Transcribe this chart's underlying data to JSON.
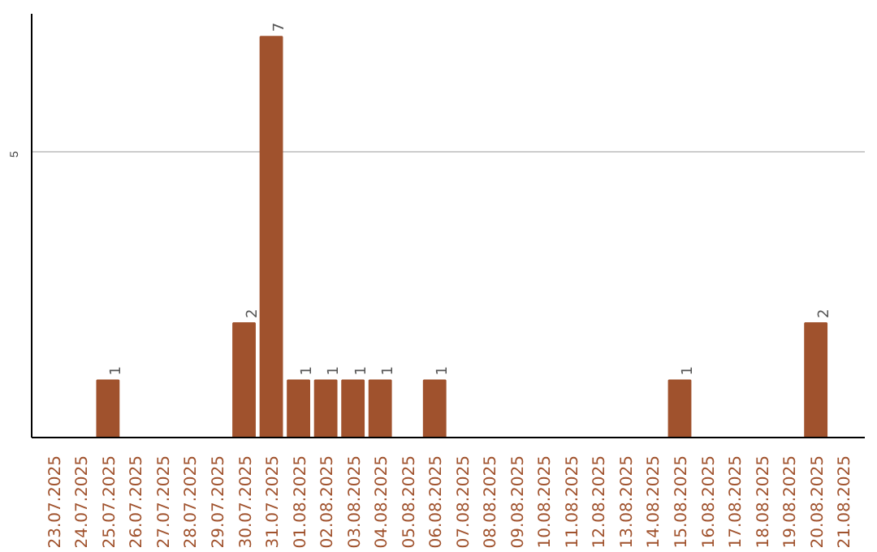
{
  "chart_data": {
    "type": "bar",
    "categories": [
      "23.07.2025",
      "24.07.2025",
      "25.07.2025",
      "26.07.2025",
      "27.07.2025",
      "28.07.2025",
      "29.07.2025",
      "30.07.2025",
      "31.07.2025",
      "01.08.2025",
      "02.08.2025",
      "03.08.2025",
      "04.08.2025",
      "05.08.2025",
      "06.08.2025",
      "07.08.2025",
      "08.08.2025",
      "09.08.2025",
      "10.08.2025",
      "11.08.2025",
      "12.08.2025",
      "13.08.2025",
      "14.08.2025",
      "15.08.2025",
      "16.08.2025",
      "17.08.2025",
      "18.08.2025",
      "19.08.2025",
      "20.08.2025",
      "21.08.2025"
    ],
    "values": [
      0,
      0,
      1,
      0,
      0,
      0,
      0,
      2,
      7,
      1,
      1,
      1,
      1,
      0,
      1,
      0,
      0,
      0,
      0,
      0,
      0,
      0,
      0,
      1,
      0,
      0,
      0,
      0,
      2,
      0
    ],
    "color": "#a0522d",
    "ylim": [
      0,
      7.4
    ],
    "yticks": [
      5
    ],
    "grid": "y",
    "value_labels": [
      null,
      null,
      "1",
      null,
      null,
      null,
      null,
      "2",
      "7",
      "1",
      "1",
      "1",
      "1",
      null,
      "1",
      null,
      null,
      null,
      null,
      null,
      null,
      null,
      null,
      "1",
      null,
      null,
      null,
      null,
      "2",
      null
    ]
  }
}
